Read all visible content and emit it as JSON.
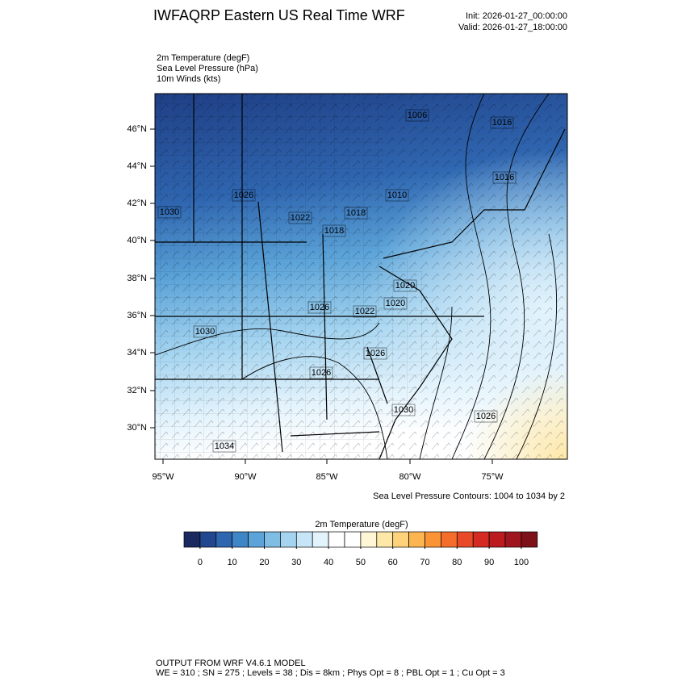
{
  "header": {
    "title": "IWFAQRP Eastern US Real Time WRF",
    "init": "Init: 2026-01-27_00:00:00",
    "valid": "Valid: 2026-01-27_18:00:00"
  },
  "fields": [
    "2m Temperature   (degF)",
    "Sea Level Pressure   (hPa)",
    "10m Winds   (kts)"
  ],
  "map": {
    "lat_labels": [
      "46°N",
      "44°N",
      "42°N",
      "40°N",
      "38°N",
      "36°N",
      "34°N",
      "32°N",
      "30°N"
    ],
    "lon_labels": [
      "95°W",
      "90°W",
      "85°W",
      "80°W",
      "75°W"
    ],
    "contour_labels": [
      "1006",
      "1016",
      "1016",
      "1026",
      "1010",
      "1030",
      "1022",
      "1018",
      "1018",
      "1020",
      "1026",
      "1022",
      "1020",
      "1030",
      "1026",
      "1026",
      "1030",
      "1026",
      "1034"
    ]
  },
  "contour_note": "Sea Level Pressure Contours: 1004 to 1034 by 2",
  "colorbar": {
    "title": "2m Temperature  (degF)",
    "colors": [
      "#1a2a5e",
      "#21478f",
      "#2f66b0",
      "#3e86c6",
      "#5ba3d8",
      "#7fbde5",
      "#a4d4f0",
      "#c6e6f8",
      "#e3f3fc",
      "#ffffff",
      "#ffffff",
      "#fff6d5",
      "#fee8a8",
      "#fed27a",
      "#fdb552",
      "#fb9436",
      "#f46d2b",
      "#e84a27",
      "#d42a22",
      "#bb1a1f",
      "#9e1520",
      "#7e1018"
    ],
    "ticks": [
      0,
      10,
      20,
      30,
      40,
      50,
      60,
      70,
      80,
      90,
      100
    ]
  },
  "footer": [
    "OUTPUT FROM WRF V4.6.1 MODEL",
    "WE = 310 ; SN = 275 ; Levels = 38 ; Dis = 8km ; Phys Opt = 8 ; PBL Opt = 1 ; Cu Opt = 3"
  ]
}
